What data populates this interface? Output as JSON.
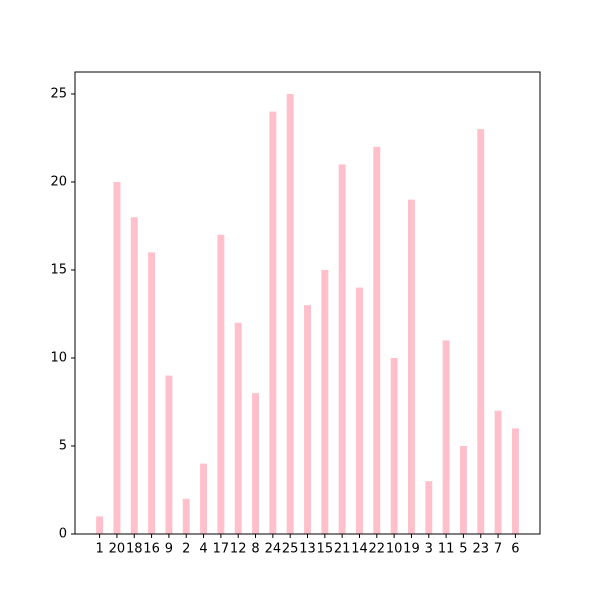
{
  "chart_data": {
    "type": "bar",
    "categories": [
      "1",
      "20",
      "18",
      "16",
      "9",
      "2",
      "4",
      "17",
      "12",
      "8",
      "24",
      "25",
      "13",
      "15",
      "21",
      "14",
      "22",
      "10",
      "19",
      "3",
      "11",
      "5",
      "23",
      "7",
      "6"
    ],
    "values": [
      1,
      20,
      18,
      16,
      9,
      2,
      4,
      17,
      12,
      8,
      24,
      25,
      13,
      15,
      21,
      14,
      22,
      10,
      19,
      3,
      11,
      5,
      23,
      7,
      6
    ],
    "color": "#ffc0cb",
    "ylim": [
      0,
      26.25
    ],
    "yticks": [
      0,
      5,
      10,
      15,
      20,
      25
    ],
    "grid": false
  }
}
